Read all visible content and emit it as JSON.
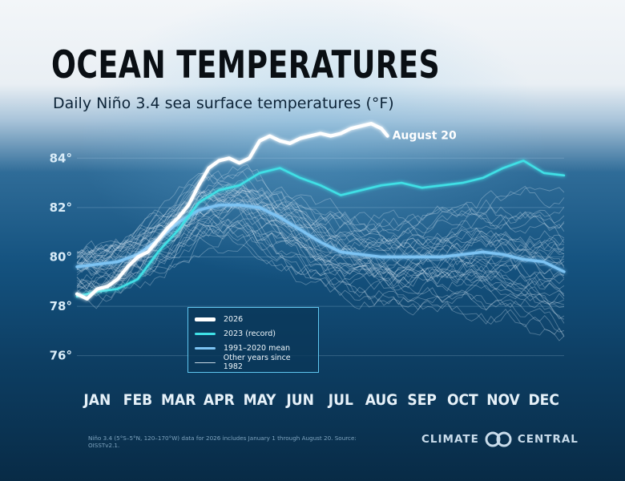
{
  "header": {
    "title": "OCEAN TEMPERATURES",
    "subtitle": "Daily Niño 3.4 sea surface temperatures  (°F)"
  },
  "chart_data": {
    "type": "line",
    "title": "OCEAN TEMPERATURES",
    "subtitle": "Daily Niño 3.4 sea surface temperatures  (°F)",
    "xlabel": "",
    "ylabel": "",
    "x_categories": [
      "JAN",
      "FEB",
      "MAR",
      "APR",
      "MAY",
      "JUN",
      "JUL",
      "AUG",
      "SEP",
      "OCT",
      "NOV",
      "DEC"
    ],
    "x_range": [
      0,
      12
    ],
    "ylim": [
      75.6,
      85.6
    ],
    "y_ticks": [
      76,
      78,
      80,
      82,
      84
    ],
    "y_tick_labels": [
      "76°",
      "78°",
      "80°",
      "82°",
      "84°"
    ],
    "grid": true,
    "legend_position": "bottom-left",
    "series": [
      {
        "name": "2026",
        "color": "#ffffff",
        "x": [
          0,
          0.25,
          0.5,
          0.75,
          1,
          1.25,
          1.5,
          1.75,
          2,
          2.25,
          2.5,
          2.75,
          3,
          3.25,
          3.5,
          3.75,
          4,
          4.25,
          4.5,
          4.75,
          5,
          5.25,
          5.5,
          5.75,
          6,
          6.25,
          6.5,
          6.75,
          7,
          7.25,
          7.5,
          7.65
        ],
        "values": [
          78.5,
          78.3,
          78.7,
          78.8,
          79.1,
          79.6,
          80.0,
          80.2,
          80.7,
          81.2,
          81.6,
          82.1,
          82.9,
          83.6,
          83.9,
          84.0,
          83.8,
          84.0,
          84.7,
          84.9,
          84.7,
          84.6,
          84.8,
          84.9,
          85.0,
          84.9,
          85.0,
          85.2,
          85.3,
          85.4,
          85.2,
          84.9
        ]
      },
      {
        "name": "2023 (record)",
        "color": "#3fe0e6",
        "x": [
          0,
          0.5,
          1,
          1.5,
          2,
          2.5,
          3,
          3.5,
          4,
          4.5,
          5,
          5.5,
          6,
          6.5,
          7,
          7.5,
          8,
          8.5,
          9,
          9.5,
          10,
          10.5,
          11,
          11.5,
          12
        ],
        "values": [
          78.4,
          78.6,
          78.7,
          79.1,
          80.2,
          81.1,
          82.2,
          82.7,
          82.9,
          83.4,
          83.6,
          83.2,
          82.9,
          82.5,
          82.7,
          82.9,
          83.0,
          82.8,
          82.9,
          83.0,
          83.2,
          83.6,
          83.9,
          83.4,
          83.3
        ]
      },
      {
        "name": "1991–2020 mean",
        "color": "#7cc3f3",
        "x": [
          0,
          0.5,
          1,
          1.5,
          2,
          2.5,
          3,
          3.5,
          4,
          4.5,
          5,
          5.5,
          6,
          6.5,
          7,
          7.5,
          8,
          8.5,
          9,
          9.5,
          10,
          10.5,
          11,
          11.5,
          12
        ],
        "values": [
          79.6,
          79.7,
          79.8,
          80.1,
          80.7,
          81.4,
          81.9,
          82.1,
          82.1,
          82.0,
          81.6,
          81.1,
          80.6,
          80.2,
          80.1,
          80.0,
          80.0,
          80.0,
          80.0,
          80.1,
          80.2,
          80.1,
          79.9,
          79.8,
          79.4
        ]
      }
    ],
    "other_years_label": "Other years since 1982",
    "annotations": [
      {
        "label": "August 20",
        "series": "2026"
      }
    ]
  },
  "legend": {
    "items": [
      {
        "label": "2026",
        "color": "#ffffff"
      },
      {
        "label": "2023 (record)",
        "color": "#3fe0e6"
      },
      {
        "label": "1991–2020 mean",
        "color": "#7cc3f3"
      },
      {
        "label": "Other years since 1982",
        "color": "#c8d8e4"
      }
    ]
  },
  "footnote": "Niño 3.4 (5°S–5°N, 120–170°W) data for 2026 includes January 1 through August 20. Source: OISSTv2.1.",
  "logo": {
    "left": "CLIMATE",
    "right": "CENTRAL"
  }
}
